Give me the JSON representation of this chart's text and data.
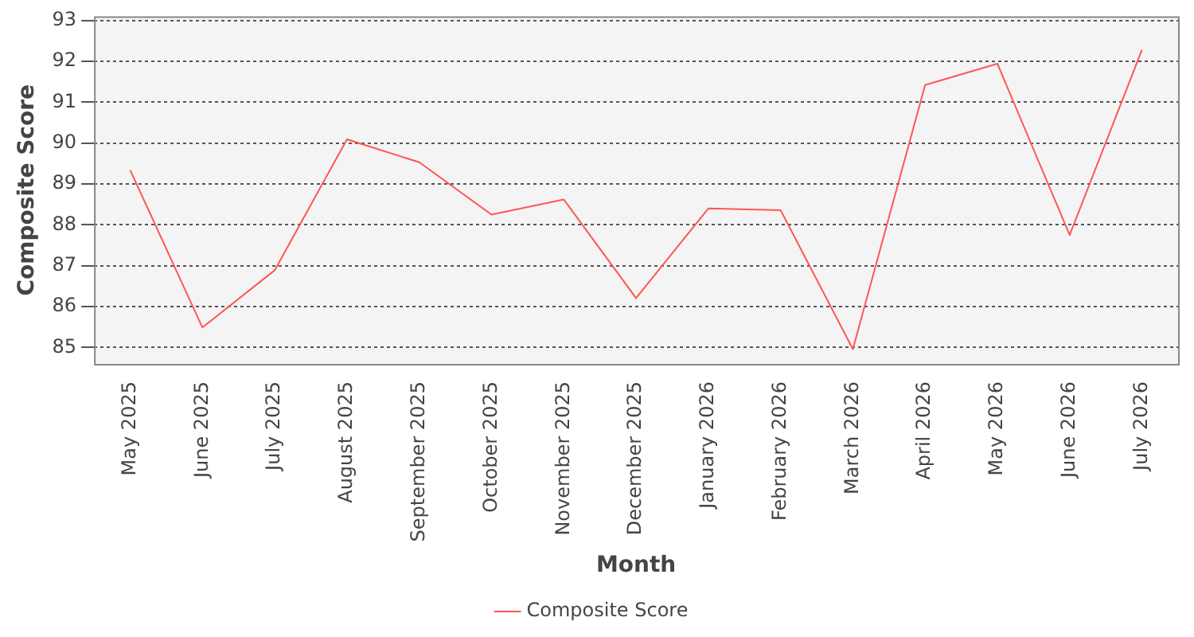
{
  "chart_data": {
    "type": "line",
    "xlabel": "Month",
    "ylabel": "Composite Score",
    "categories": [
      "May 2025",
      "June 2025",
      "July 2025",
      "August 2025",
      "September 2025",
      "October 2025",
      "November 2025",
      "December 2025",
      "January 2026",
      "February 2026",
      "March 2026",
      "April 2026",
      "May 2026",
      "June 2026",
      "July 2026"
    ],
    "series": [
      {
        "name": "Composite Score",
        "color": "#ff5555",
        "values": [
          89.34,
          85.49,
          86.89,
          90.09,
          89.53,
          88.25,
          88.62,
          86.21,
          88.4,
          88.36,
          84.96,
          91.42,
          91.94,
          87.75,
          92.28
        ]
      }
    ],
    "ylim": [
      84.6,
      93.1
    ],
    "yticks": [
      85,
      86,
      87,
      88,
      89,
      90,
      91,
      92,
      93
    ],
    "grid": "y",
    "legend": "bottom",
    "marker": "none",
    "line_style": "solid"
  }
}
